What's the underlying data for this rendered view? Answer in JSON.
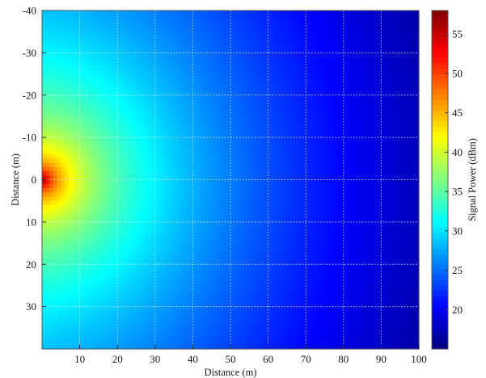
{
  "chart_data": {
    "type": "heatmap",
    "title": "",
    "xlabel": "Distance (m)",
    "ylabel": "Distance (m)",
    "colorbar_label": "Signal Power (dBm)",
    "colormap": "jet",
    "xlim": [
      0,
      100
    ],
    "ylim": [
      -40,
      40
    ],
    "y_axis_reversed": true,
    "x_ticks": [
      10,
      20,
      30,
      40,
      50,
      60,
      70,
      80,
      90,
      100
    ],
    "y_ticks": [
      -40,
      -30,
      -20,
      -10,
      0,
      10,
      20,
      30
    ],
    "color_range": [
      15,
      58
    ],
    "colorbar_ticks": [
      20,
      25,
      30,
      35,
      40,
      45,
      50,
      55
    ],
    "grid": true,
    "source": {
      "x": 0,
      "y": 0,
      "peak_dBm": 58
    },
    "value_samples": [
      {
        "x": 1,
        "y": 0,
        "value": 58
      },
      {
        "x": 5,
        "y": 0,
        "value": 42
      },
      {
        "x": 10,
        "y": 0,
        "value": 33
      },
      {
        "x": 20,
        "y": 0,
        "value": 28
      },
      {
        "x": 30,
        "y": 0,
        "value": 25
      },
      {
        "x": 50,
        "y": 0,
        "value": 21
      },
      {
        "x": 100,
        "y": 0,
        "value": 17
      },
      {
        "x": 0,
        "y": -40,
        "value": 23
      },
      {
        "x": 0,
        "y": 40,
        "value": 23
      },
      {
        "x": 100,
        "y": -40,
        "value": 15.5
      },
      {
        "x": 100,
        "y": 40,
        "value": 15.5
      }
    ]
  }
}
